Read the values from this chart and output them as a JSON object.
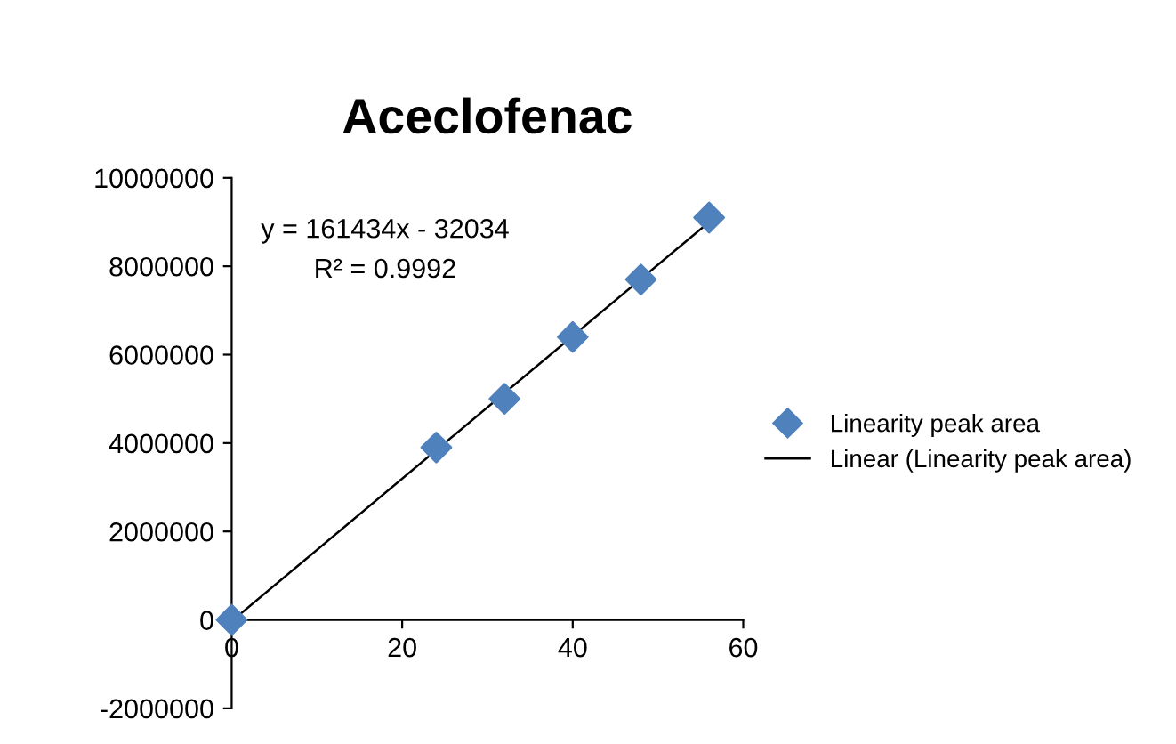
{
  "chart_data": {
    "type": "scatter",
    "title": "Aceclofenac",
    "x": [
      0,
      24,
      32,
      40,
      48,
      56
    ],
    "series": [
      {
        "name": "Linearity peak area",
        "color": "#4f81bd",
        "marker": "diamond",
        "values": [
          0,
          3900000,
          5000000,
          6400000,
          7700000,
          9100000
        ]
      },
      {
        "name": "Linear (Linearity peak area)",
        "type": "line",
        "color": "#000000",
        "marker": "none",
        "line_style": "solid",
        "x": [
          0,
          56
        ],
        "values": [
          -30000,
          9000000
        ]
      }
    ],
    "annotations": [
      "y = 161434x - 32034",
      "R² = 0.9992"
    ],
    "xlim": [
      0,
      60
    ],
    "xticks": [
      0,
      20,
      40,
      60
    ],
    "ylim": [
      -2000000,
      10000000
    ],
    "yticks": [
      -2000000,
      0,
      2000000,
      4000000,
      6000000,
      8000000,
      10000000
    ],
    "grid": false,
    "legend": "right"
  }
}
